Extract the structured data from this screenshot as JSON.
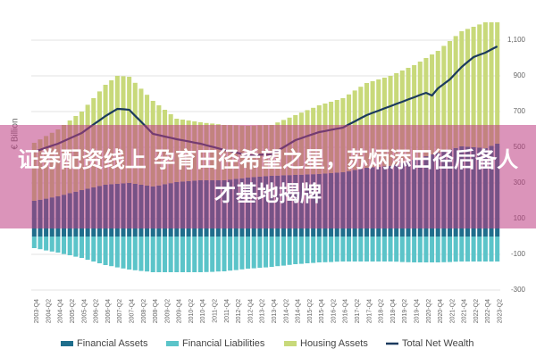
{
  "chart_data": {
    "type": "bar",
    "stacked": true,
    "y_label": "€ Billion",
    "categories": [
      "2003-Q4",
      null,
      "2004-Q2",
      null,
      "2004-Q4",
      null,
      "2005-Q2",
      null,
      "2005-Q4",
      null,
      "2006-Q2",
      null,
      "2006-Q4",
      null,
      "2007-Q2",
      null,
      "2007-Q4",
      null,
      "2008-Q2",
      null,
      "2008-Q4",
      null,
      "2009-Q2",
      null,
      "2009-Q4",
      null,
      "2010-Q2",
      null,
      "2010-Q4",
      null,
      "2011-Q2",
      null,
      "2011-Q4",
      null,
      "2012-Q2",
      null,
      "2012-Q4",
      null,
      "2013-Q2",
      null,
      "2013-Q4",
      null,
      "2014-Q2",
      null,
      "2014-Q4",
      null,
      "2015-Q2",
      null,
      "2015-Q4",
      null,
      "2016-Q2",
      null,
      "2016-Q4",
      null,
      "2017-Q2",
      null,
      "2017-Q4",
      null,
      "2018-Q2",
      null,
      "2018-Q4",
      null,
      "2019-Q2",
      null,
      "2019-Q4",
      null,
      "2020-Q2",
      null,
      "2020-Q4",
      null,
      "2021-Q2",
      null,
      "2021-Q4",
      null,
      "2022-Q2",
      null,
      "2022-Q4",
      null,
      "2023-Q2"
    ],
    "series": [
      {
        "name": "Financial Assets",
        "color": "#1f6e8c",
        "values": [
          200,
          206,
          212,
          219,
          225,
          234,
          243,
          251,
          260,
          268,
          275,
          283,
          290,
          293,
          295,
          298,
          300,
          295,
          290,
          285,
          280,
          286,
          293,
          299,
          305,
          308,
          310,
          313,
          315,
          315,
          315,
          315,
          315,
          319,
          323,
          326,
          330,
          333,
          335,
          338,
          340,
          341,
          343,
          344,
          345,
          346,
          348,
          349,
          350,
          353,
          355,
          358,
          360,
          366,
          373,
          379,
          385,
          388,
          390,
          393,
          395,
          404,
          413,
          421,
          430,
          440,
          450,
          460,
          470,
          479,
          488,
          496,
          505,
          503,
          500,
          498,
          495,
          508,
          520
        ]
      },
      {
        "name": "Financial Liabilities",
        "color": "#5bc4c9",
        "values": [
          -65,
          -71,
          -78,
          -84,
          -90,
          -98,
          -105,
          -113,
          -120,
          -130,
          -140,
          -150,
          -160,
          -166,
          -173,
          -179,
          -185,
          -189,
          -193,
          -196,
          -200,
          -200,
          -200,
          -200,
          -200,
          -200,
          -200,
          -200,
          -200,
          -199,
          -198,
          -196,
          -195,
          -191,
          -188,
          -184,
          -180,
          -178,
          -175,
          -173,
          -170,
          -166,
          -163,
          -159,
          -155,
          -153,
          -150,
          -148,
          -145,
          -144,
          -143,
          -141,
          -140,
          -140,
          -140,
          -140,
          -140,
          -140,
          -140,
          -140,
          -140,
          -141,
          -143,
          -144,
          -145,
          -145,
          -145,
          -145,
          -145,
          -144,
          -143,
          -141,
          -140,
          -140,
          -140,
          -140,
          -140,
          -140,
          -140
        ]
      },
      {
        "name": "Housing Assets",
        "color": "#c8d97a",
        "values": [
          325,
          338,
          351,
          362,
          375,
          391,
          407,
          424,
          440,
          470,
          500,
          530,
          560,
          582,
          605,
          600,
          595,
          566,
          538,
          509,
          480,
          449,
          417,
          386,
          355,
          347,
          340,
          332,
          325,
          321,
          318,
          314,
          310,
          305,
          300,
          295,
          290,
          288,
          288,
          286,
          285,
          298,
          310,
          322,
          335,
          348,
          360,
          372,
          385,
          392,
          400,
          407,
          415,
          430,
          445,
          460,
          475,
          482,
          490,
          497,
          505,
          511,
          517,
          524,
          530,
          540,
          550,
          560,
          570,
          589,
          607,
          627,
          645,
          660,
          675,
          690,
          705,
          692,
          680
        ]
      },
      {
        "name": "Total Net Wealth",
        "color": "#1b3a5e",
        "type": "line",
        "values": [
          475,
          486,
          498,
          509,
          520,
          535,
          550,
          565,
          580,
          604,
          628,
          651,
          675,
          695,
          715,
          713,
          710,
          676,
          643,
          609,
          575,
          568,
          560,
          553,
          545,
          539,
          533,
          526,
          520,
          511,
          503,
          494,
          485,
          478,
          470,
          463,
          455,
          456,
          458,
          459,
          460,
          480,
          500,
          520,
          540,
          551,
          563,
          574,
          585,
          591,
          598,
          604,
          610,
          628,
          645,
          663,
          680,
          693,
          705,
          718,
          730,
          743,
          755,
          768,
          780,
          793,
          805,
          790,
          830,
          855,
          880,
          915,
          950,
          978,
          1005,
          1018,
          1030,
          1048,
          1065
        ]
      }
    ],
    "ylim": [
      -340,
      1200
    ],
    "yticks": [
      -300,
      -100,
      100,
      300,
      500,
      700,
      900,
      {
        "value": 1100,
        "label": "1,100"
      }
    ],
    "grid": true,
    "legend": "bottom"
  },
  "overlay_headline": "证券配资线上 孕育田径希望之星，苏炳添田径后备人才基地揭牌"
}
